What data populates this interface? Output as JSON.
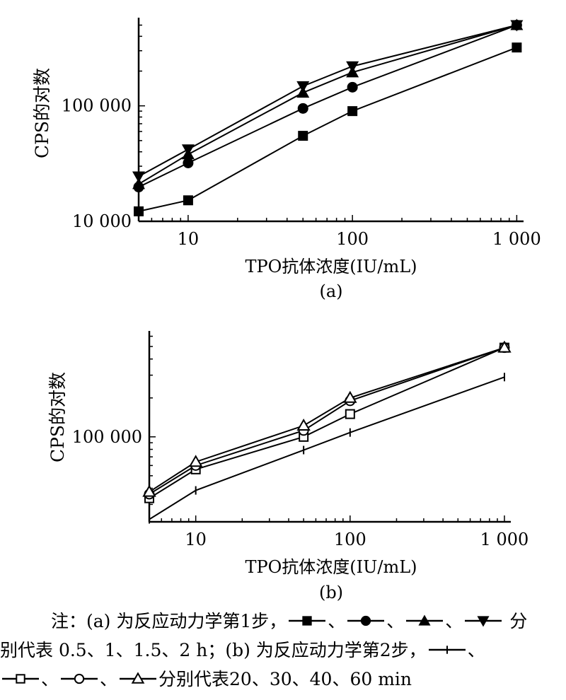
{
  "chart_data": [
    {
      "type": "line",
      "panel_label": "(a)",
      "xlabel": "TPO抗体浓度(IU/mL)",
      "ylabel": "CPS的对数",
      "x_scale": "log",
      "y_scale": "log",
      "xlim": [
        5,
        1100
      ],
      "ylim": [
        10000,
        580000
      ],
      "x_ticks": [
        10,
        100,
        1000
      ],
      "x_tick_labels": [
        "10",
        "100",
        "1 000"
      ],
      "y_ticks": [
        10000,
        100000
      ],
      "y_tick_labels": [
        "10 000",
        "100 000"
      ],
      "x": [
        5,
        10,
        50,
        100,
        1000
      ],
      "series": [
        {
          "marker": "filled-square",
          "values": [
            12200,
            15200,
            55000,
            90000,
            320000
          ]
        },
        {
          "marker": "filled-circle",
          "values": [
            19800,
            32000,
            95000,
            145000,
            500000
          ]
        },
        {
          "marker": "filled-triangle-up",
          "values": [
            21000,
            38000,
            130000,
            195000,
            500000
          ]
        },
        {
          "marker": "filled-triangle-down",
          "values": [
            24500,
            42000,
            148000,
            220000,
            500000
          ]
        }
      ]
    },
    {
      "type": "line",
      "panel_label": "(b)",
      "xlabel": "TPO抗体浓度(IU/mL)",
      "ylabel": "CPS的对数",
      "x_scale": "log",
      "y_scale": "log",
      "xlim": [
        5,
        1100
      ],
      "ylim": [
        22000,
        660000
      ],
      "x_ticks": [
        10,
        100,
        1000
      ],
      "x_tick_labels": [
        "10",
        "100",
        "1 000"
      ],
      "y_ticks": [
        100000
      ],
      "y_tick_labels": [
        "100 000"
      ],
      "x": [
        5,
        10,
        50,
        100,
        1000
      ],
      "series": [
        {
          "marker": "plus",
          "values": [
            23000,
            38500,
            79000,
            108000,
            290000
          ]
        },
        {
          "marker": "open-square",
          "values": [
            33500,
            56000,
            100000,
            150000,
            490000
          ]
        },
        {
          "marker": "open-circle",
          "values": [
            36000,
            60000,
            112000,
            190000,
            490000
          ]
        },
        {
          "marker": "open-triangle",
          "values": [
            37500,
            64000,
            122000,
            200000,
            490000
          ]
        }
      ]
    }
  ],
  "note": {
    "line1_prefix": "注：(a) 为反应动力学第1步，",
    "line1_sep": "、",
    "line1_suffix": "分",
    "line2": "别代表 0.5、1、1.5、2 h；(b) 为反应动力学第2步，",
    "line2_suffix": "、",
    "line3_sep": "、",
    "line3_suffix": "分别代表20、30、40、60 min"
  }
}
